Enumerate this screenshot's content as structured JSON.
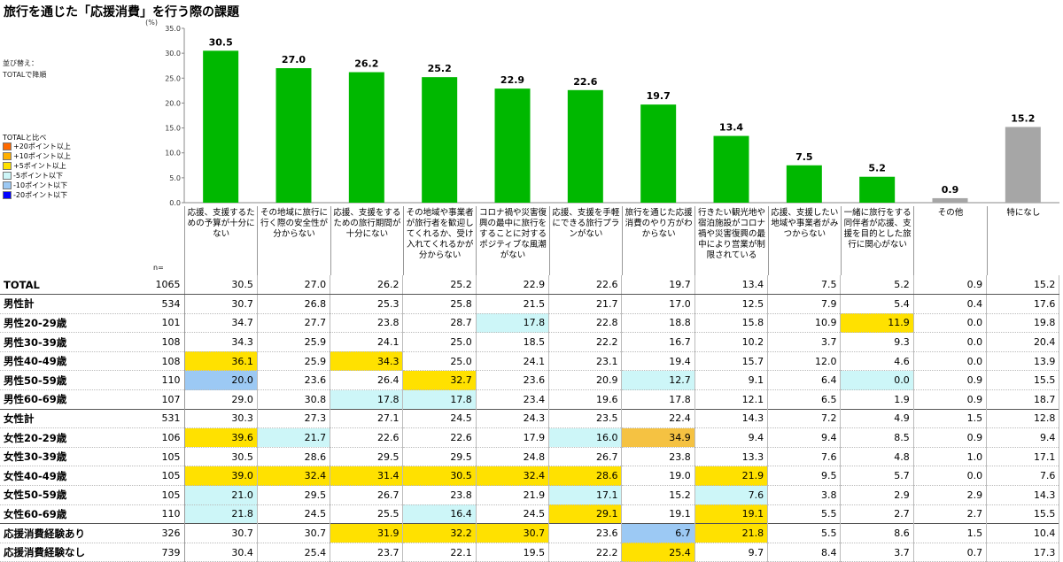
{
  "title": "旅行を通じた「応援消費」を行う際の課題",
  "sort_note": [
    "並び替え：",
    "TOTALで降順"
  ],
  "legend": {
    "title": "TOTALと比べ",
    "items": [
      {
        "label": "+20ポイント以上",
        "color": "#ff6a00"
      },
      {
        "label": "+10ポイント以上",
        "color": "#ffb000"
      },
      {
        "label": "+5ポイント以上",
        "color": "#ffe100"
      },
      {
        "label": "-5ポイント以下",
        "color": "#cdf6f8"
      },
      {
        "label": "-10ポイント以下",
        "color": "#9cc9f4"
      },
      {
        "label": "-20ポイント以下",
        "color": "#0000ff"
      }
    ]
  },
  "n_label": "n=",
  "chart_data": {
    "type": "bar",
    "unit_label": "(%)",
    "ylim": [
      0,
      35
    ],
    "yticks": [
      "0.0",
      "5.0",
      "10.0",
      "15.0",
      "20.0",
      "25.0",
      "30.0",
      "35.0"
    ],
    "categories": [
      "応援、支援するための予算が十分にない",
      "その地域に旅行に行く際の安全性が分からない",
      "応援、支援をするための旅行期間が十分にない",
      "その地域や事業者が旅行者を歓迎してくれるか、受け入れてくれるかが分からない",
      "コロナ禍や災害復興の最中に旅行をすることに対するポジティブな風潮がない",
      "応援、支援を手軽にできる旅行プランがない",
      "旅行を通じた応援消費のやり方がわからない",
      "行きたい観光地や宿泊施設がコロナ禍や災害復興の最中により営業が制限されている",
      "応援、支援したい地域や事業者がみつからない",
      "一緒に旅行をする同伴者が応援、支援を目的とした旅行に関心がない",
      "その他",
      "特になし"
    ],
    "values": [
      30.5,
      27.0,
      26.2,
      25.2,
      22.9,
      22.6,
      19.7,
      13.4,
      7.5,
      5.2,
      0.9,
      15.2
    ],
    "value_labels": [
      "30.5",
      "27.0",
      "26.2",
      "25.2",
      "22.9",
      "22.6",
      "19.7",
      "13.4",
      "7.5",
      "5.2",
      "0.9",
      "15.2"
    ],
    "bar_colors": [
      "#00b800",
      "#00b800",
      "#00b800",
      "#00b800",
      "#00b800",
      "#00b800",
      "#00b800",
      "#00b800",
      "#00b800",
      "#00b800",
      "#a6a6a6",
      "#a6a6a6"
    ]
  },
  "table": {
    "rows": [
      {
        "label": "TOTAL",
        "n": "1065",
        "vals": [
          "30.5",
          "27.0",
          "26.2",
          "25.2",
          "22.9",
          "22.6",
          "19.7",
          "13.4",
          "7.5",
          "5.2",
          "0.9",
          "15.2"
        ],
        "hl": [
          0,
          0,
          0,
          0,
          0,
          0,
          0,
          0,
          0,
          0,
          0,
          0
        ]
      },
      {
        "label": "男性計",
        "n": "534",
        "vals": [
          "30.7",
          "26.8",
          "25.3",
          "25.8",
          "21.5",
          "21.7",
          "17.0",
          "12.5",
          "7.9",
          "5.4",
          "0.4",
          "17.6"
        ],
        "hl": [
          0,
          0,
          0,
          0,
          0,
          0,
          0,
          0,
          0,
          0,
          0,
          0
        ]
      },
      {
        "label": "男性20-29歳",
        "n": "101",
        "vals": [
          "34.7",
          "27.7",
          "23.8",
          "28.7",
          "17.8",
          "22.8",
          "18.8",
          "15.8",
          "10.9",
          "11.9",
          "0.0",
          "19.8"
        ],
        "hl": [
          0,
          0,
          0,
          0,
          "c",
          0,
          0,
          0,
          0,
          "y",
          0,
          0
        ]
      },
      {
        "label": "男性30-39歳",
        "n": "108",
        "vals": [
          "34.3",
          "25.9",
          "24.1",
          "25.0",
          "18.5",
          "22.2",
          "16.7",
          "10.2",
          "3.7",
          "9.3",
          "0.0",
          "20.4"
        ],
        "hl": [
          0,
          0,
          0,
          0,
          0,
          0,
          0,
          0,
          0,
          0,
          0,
          0
        ]
      },
      {
        "label": "男性40-49歳",
        "n": "108",
        "vals": [
          "36.1",
          "25.9",
          "34.3",
          "25.0",
          "24.1",
          "23.1",
          "19.4",
          "15.7",
          "12.0",
          "4.6",
          "0.0",
          "13.9"
        ],
        "hl": [
          "y",
          0,
          "y",
          0,
          0,
          0,
          0,
          0,
          0,
          0,
          0,
          0
        ]
      },
      {
        "label": "男性50-59歳",
        "n": "110",
        "vals": [
          "20.0",
          "23.6",
          "26.4",
          "32.7",
          "23.6",
          "20.9",
          "12.7",
          "9.1",
          "6.4",
          "0.0",
          "0.9",
          "15.5"
        ],
        "hl": [
          "b",
          0,
          0,
          "y",
          0,
          0,
          "c",
          0,
          0,
          "c",
          0,
          0
        ]
      },
      {
        "label": "男性60-69歳",
        "n": "107",
        "vals": [
          "29.0",
          "30.8",
          "17.8",
          "17.8",
          "23.4",
          "19.6",
          "17.8",
          "12.1",
          "6.5",
          "1.9",
          "0.9",
          "18.7"
        ],
        "hl": [
          0,
          0,
          "c",
          "c",
          0,
          0,
          0,
          0,
          0,
          0,
          0,
          0
        ]
      },
      {
        "label": "女性計",
        "n": "531",
        "vals": [
          "30.3",
          "27.3",
          "27.1",
          "24.5",
          "24.3",
          "23.5",
          "22.4",
          "14.3",
          "7.2",
          "4.9",
          "1.5",
          "12.8"
        ],
        "hl": [
          0,
          0,
          0,
          0,
          0,
          0,
          0,
          0,
          0,
          0,
          0,
          0
        ]
      },
      {
        "label": "女性20-29歳",
        "n": "106",
        "vals": [
          "39.6",
          "21.7",
          "22.6",
          "22.6",
          "17.9",
          "16.0",
          "34.9",
          "9.4",
          "9.4",
          "8.5",
          "0.9",
          "9.4"
        ],
        "hl": [
          "y",
          "c",
          0,
          0,
          0,
          "c",
          "o",
          0,
          0,
          0,
          0,
          0
        ]
      },
      {
        "label": "女性30-39歳",
        "n": "105",
        "vals": [
          "30.5",
          "28.6",
          "29.5",
          "29.5",
          "24.8",
          "26.7",
          "23.8",
          "13.3",
          "7.6",
          "4.8",
          "1.0",
          "17.1"
        ],
        "hl": [
          0,
          0,
          0,
          0,
          0,
          0,
          0,
          0,
          0,
          0,
          0,
          0
        ]
      },
      {
        "label": "女性40-49歳",
        "n": "105",
        "vals": [
          "39.0",
          "32.4",
          "31.4",
          "30.5",
          "32.4",
          "28.6",
          "19.0",
          "21.9",
          "9.5",
          "5.7",
          "0.0",
          "7.6"
        ],
        "hl": [
          "y",
          "y",
          "y",
          "y",
          "y",
          "y",
          0,
          "y",
          0,
          0,
          0,
          0
        ]
      },
      {
        "label": "女性50-59歳",
        "n": "105",
        "vals": [
          "21.0",
          "29.5",
          "26.7",
          "23.8",
          "21.9",
          "17.1",
          "15.2",
          "7.6",
          "3.8",
          "2.9",
          "2.9",
          "14.3"
        ],
        "hl": [
          "c",
          0,
          0,
          0,
          0,
          "c",
          0,
          "c",
          0,
          0,
          0,
          0
        ]
      },
      {
        "label": "女性60-69歳",
        "n": "110",
        "vals": [
          "21.8",
          "24.5",
          "25.5",
          "16.4",
          "24.5",
          "29.1",
          "19.1",
          "19.1",
          "5.5",
          "2.7",
          "2.7",
          "15.5"
        ],
        "hl": [
          "c",
          0,
          0,
          "c",
          0,
          "y",
          0,
          "y",
          0,
          0,
          0,
          0
        ]
      },
      {
        "label": "応援消費経験あり",
        "n": "326",
        "vals": [
          "30.7",
          "30.7",
          "31.9",
          "32.2",
          "30.7",
          "23.6",
          "6.7",
          "21.8",
          "5.5",
          "8.6",
          "1.5",
          "10.4"
        ],
        "hl": [
          0,
          0,
          "y",
          "y",
          "y",
          0,
          "b",
          "y",
          0,
          0,
          0,
          0
        ]
      },
      {
        "label": "応援消費経験なし",
        "n": "739",
        "vals": [
          "30.4",
          "25.4",
          "23.7",
          "22.1",
          "19.5",
          "22.2",
          "25.4",
          "9.7",
          "8.4",
          "3.7",
          "0.7",
          "17.3"
        ],
        "hl": [
          0,
          0,
          0,
          0,
          0,
          0,
          "y",
          0,
          0,
          0,
          0,
          0
        ]
      }
    ]
  }
}
